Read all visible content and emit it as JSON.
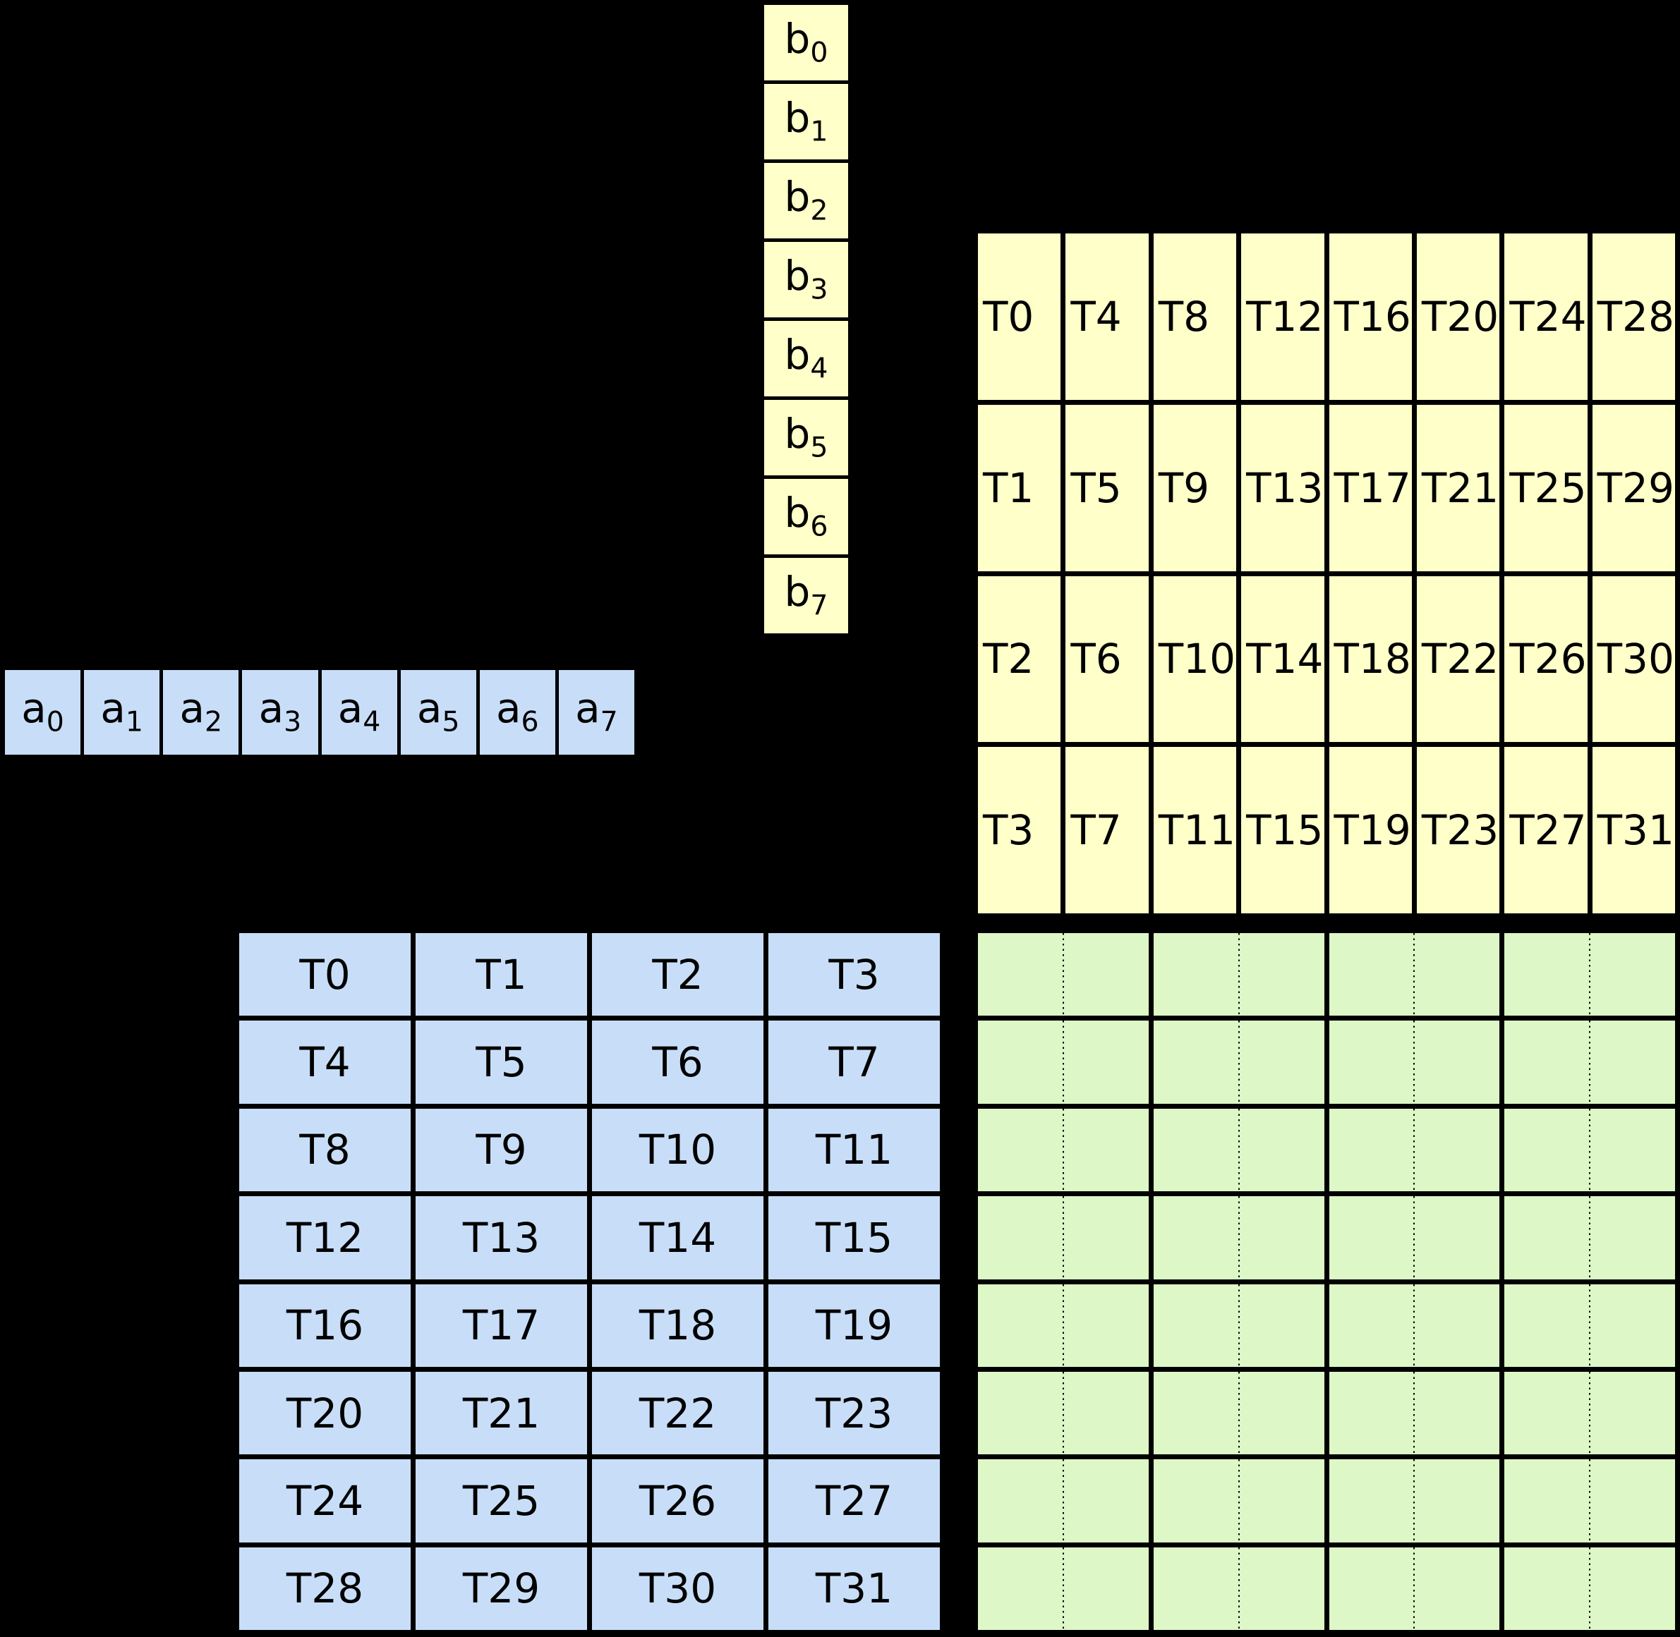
{
  "colors": {
    "background": "#000000",
    "line": "#000000",
    "vector_fill_b": "#ffffc9",
    "vector_fill_a": "#c8def8",
    "thread_grid_fill_b": "#ffffc9",
    "thread_grid_fill_a": "#c8def8",
    "result_grid_fill": "#ddf8c6",
    "text": "#000000"
  },
  "vector_b": {
    "cells": [
      {
        "base": "b",
        "sub": "0"
      },
      {
        "base": "b",
        "sub": "1"
      },
      {
        "base": "b",
        "sub": "2"
      },
      {
        "base": "b",
        "sub": "3"
      },
      {
        "base": "b",
        "sub": "4"
      },
      {
        "base": "b",
        "sub": "5"
      },
      {
        "base": "b",
        "sub": "6"
      },
      {
        "base": "b",
        "sub": "7"
      }
    ]
  },
  "vector_a": {
    "cells": [
      {
        "base": "a",
        "sub": "0"
      },
      {
        "base": "a",
        "sub": "1"
      },
      {
        "base": "a",
        "sub": "2"
      },
      {
        "base": "a",
        "sub": "3"
      },
      {
        "base": "a",
        "sub": "4"
      },
      {
        "base": "a",
        "sub": "5"
      },
      {
        "base": "a",
        "sub": "6"
      },
      {
        "base": "a",
        "sub": "7"
      }
    ]
  },
  "thread_grid_column_major": {
    "rows": [
      [
        "T0",
        "T4",
        "T8",
        "T12",
        "T16",
        "T20",
        "T24",
        "T28"
      ],
      [
        "T1",
        "T5",
        "T9",
        "T13",
        "T17",
        "T21",
        "T25",
        "T29"
      ],
      [
        "T2",
        "T6",
        "T10",
        "T14",
        "T18",
        "T22",
        "T26",
        "T30"
      ],
      [
        "T3",
        "T7",
        "T11",
        "T15",
        "T19",
        "T23",
        "T27",
        "T31"
      ]
    ]
  },
  "thread_grid_row_major": {
    "rows": [
      [
        "T0",
        "T1",
        "T2",
        "T3"
      ],
      [
        "T4",
        "T5",
        "T6",
        "T7"
      ],
      [
        "T8",
        "T9",
        "T10",
        "T11"
      ],
      [
        "T12",
        "T13",
        "T14",
        "T15"
      ],
      [
        "T16",
        "T17",
        "T18",
        "T19"
      ],
      [
        "T20",
        "T21",
        "T22",
        "T23"
      ],
      [
        "T24",
        "T25",
        "T26",
        "T27"
      ],
      [
        "T28",
        "T29",
        "T30",
        "T31"
      ]
    ]
  },
  "result_grid": {
    "rows": 8,
    "column_groups": 4,
    "subcells_per_group": 2
  }
}
